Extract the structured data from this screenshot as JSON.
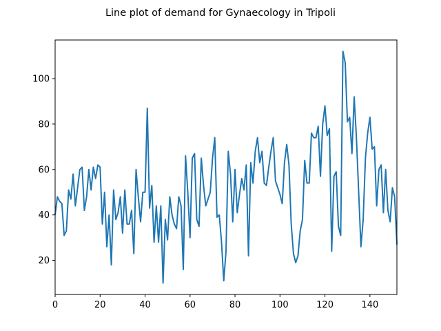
{
  "chart_data": {
    "type": "line",
    "title": "Line plot of demand for Gynaecology in Tripoli",
    "xlabel": "",
    "ylabel": "",
    "xlim": [
      0,
      152
    ],
    "ylim": [
      5,
      117
    ],
    "xticks": [
      0,
      20,
      40,
      60,
      80,
      100,
      120,
      140
    ],
    "yticks": [
      20,
      40,
      60,
      80,
      100
    ],
    "grid": false,
    "series": [
      {
        "color": "#1f77b4",
        "x": [
          0,
          1,
          2,
          3,
          4,
          5,
          6,
          7,
          8,
          9,
          10,
          11,
          12,
          13,
          14,
          15,
          16,
          17,
          18,
          19,
          20,
          21,
          22,
          23,
          24,
          25,
          26,
          27,
          28,
          29,
          30,
          31,
          32,
          33,
          34,
          35,
          36,
          37,
          38,
          39,
          40,
          41,
          42,
          43,
          44,
          45,
          46,
          47,
          48,
          49,
          50,
          51,
          52,
          53,
          54,
          55,
          56,
          57,
          58,
          59,
          60,
          61,
          62,
          63,
          64,
          65,
          66,
          67,
          68,
          69,
          70,
          71,
          72,
          73,
          74,
          75,
          76,
          77,
          78,
          79,
          80,
          81,
          82,
          83,
          84,
          85,
          86,
          87,
          88,
          89,
          90,
          91,
          92,
          93,
          94,
          95,
          96,
          97,
          98,
          99,
          100,
          101,
          102,
          103,
          104,
          105,
          106,
          107,
          108,
          109,
          110,
          111,
          112,
          113,
          114,
          115,
          116,
          117,
          118,
          119,
          120,
          121,
          122,
          123,
          124,
          125,
          126,
          127,
          128,
          129,
          130,
          131,
          132,
          133,
          134,
          135,
          136,
          137,
          138,
          139,
          140,
          141,
          142,
          143,
          144,
          145,
          146,
          147,
          148,
          149,
          150,
          151,
          152
        ],
        "values": [
          40,
          48,
          46,
          45,
          31,
          33,
          51,
          47,
          58,
          44,
          52,
          60,
          61,
          42,
          48,
          60,
          51,
          61,
          56,
          62,
          61,
          36,
          50,
          26,
          40,
          18,
          51,
          38,
          41,
          48,
          32,
          51,
          36,
          36,
          42,
          23,
          60,
          48,
          37,
          50,
          50,
          87,
          43,
          53,
          28,
          44,
          28,
          44,
          10,
          38,
          29,
          48,
          40,
          36,
          34,
          48,
          44,
          16,
          66,
          50,
          30,
          65,
          67,
          38,
          35,
          65,
          53,
          44,
          47,
          50,
          65,
          74,
          39,
          40,
          28,
          11,
          24,
          68,
          58,
          37,
          60,
          41,
          49,
          56,
          51,
          62,
          22,
          63,
          54,
          68,
          74,
          63,
          68,
          54,
          53,
          61,
          68,
          74,
          55,
          52,
          49,
          45,
          63,
          71,
          62,
          36,
          23,
          19,
          22,
          33,
          38,
          64,
          54,
          54,
          76,
          74,
          74,
          79,
          57,
          80,
          88,
          75,
          78,
          24,
          57,
          59,
          35,
          31,
          112,
          107,
          81,
          83,
          67,
          92,
          74,
          50,
          26,
          38,
          65,
          76,
          83,
          69,
          70,
          44,
          60,
          62,
          41,
          60,
          42,
          37,
          52,
          48,
          27
        ]
      }
    ]
  }
}
